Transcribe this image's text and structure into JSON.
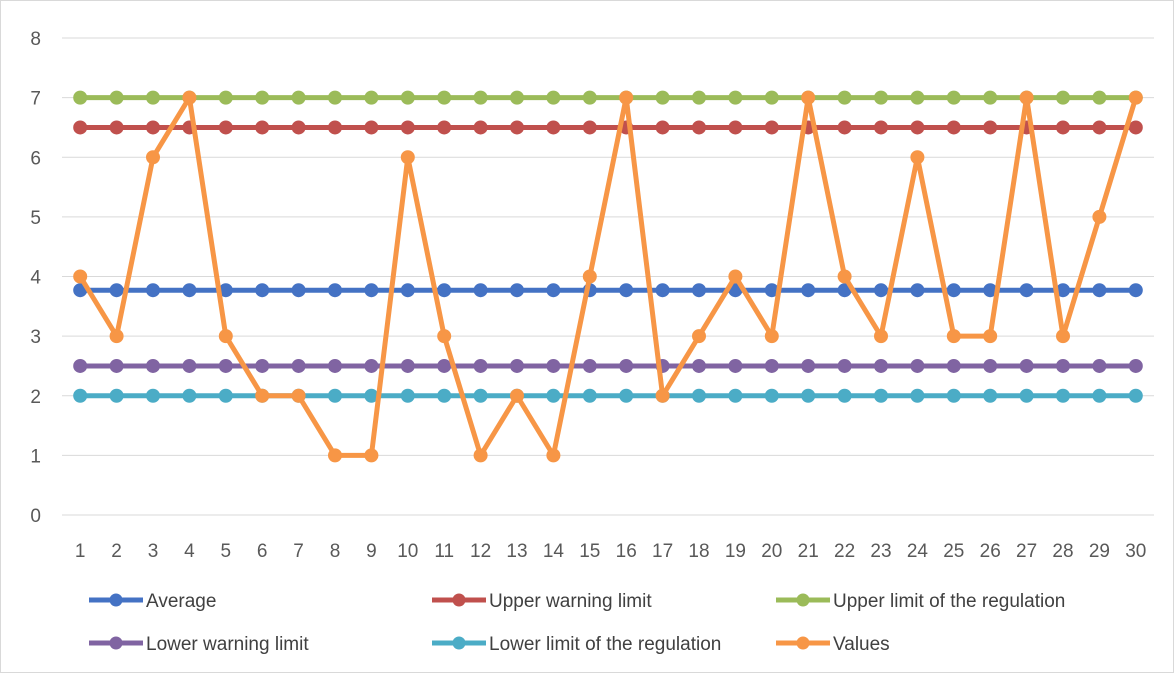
{
  "chart_data": {
    "type": "line",
    "title": "",
    "xlabel": "",
    "ylabel": "",
    "ylim": [
      0,
      8
    ],
    "yticks": [
      0,
      1,
      2,
      3,
      4,
      5,
      6,
      7,
      8
    ],
    "grid": "horizontal",
    "legend_position": "bottom",
    "categories": [
      1,
      2,
      3,
      4,
      5,
      6,
      7,
      8,
      9,
      10,
      11,
      12,
      13,
      14,
      15,
      16,
      17,
      18,
      19,
      20,
      21,
      22,
      23,
      24,
      25,
      26,
      27,
      28,
      29,
      30
    ],
    "series": [
      {
        "name": "Average",
        "color": "#4472C4",
        "values": [
          3.77,
          3.77,
          3.77,
          3.77,
          3.77,
          3.77,
          3.77,
          3.77,
          3.77,
          3.77,
          3.77,
          3.77,
          3.77,
          3.77,
          3.77,
          3.77,
          3.77,
          3.77,
          3.77,
          3.77,
          3.77,
          3.77,
          3.77,
          3.77,
          3.77,
          3.77,
          3.77,
          3.77,
          3.77,
          3.77
        ]
      },
      {
        "name": "Upper warning limit",
        "color": "#C0504D",
        "values": [
          6.5,
          6.5,
          6.5,
          6.5,
          6.5,
          6.5,
          6.5,
          6.5,
          6.5,
          6.5,
          6.5,
          6.5,
          6.5,
          6.5,
          6.5,
          6.5,
          6.5,
          6.5,
          6.5,
          6.5,
          6.5,
          6.5,
          6.5,
          6.5,
          6.5,
          6.5,
          6.5,
          6.5,
          6.5,
          6.5
        ]
      },
      {
        "name": "Upper limit of the regulation",
        "color": "#9BBB59",
        "values": [
          7,
          7,
          7,
          7,
          7,
          7,
          7,
          7,
          7,
          7,
          7,
          7,
          7,
          7,
          7,
          7,
          7,
          7,
          7,
          7,
          7,
          7,
          7,
          7,
          7,
          7,
          7,
          7,
          7,
          7
        ]
      },
      {
        "name": "Lower warning limit",
        "color": "#8064A2",
        "values": [
          2.5,
          2.5,
          2.5,
          2.5,
          2.5,
          2.5,
          2.5,
          2.5,
          2.5,
          2.5,
          2.5,
          2.5,
          2.5,
          2.5,
          2.5,
          2.5,
          2.5,
          2.5,
          2.5,
          2.5,
          2.5,
          2.5,
          2.5,
          2.5,
          2.5,
          2.5,
          2.5,
          2.5,
          2.5,
          2.5
        ]
      },
      {
        "name": "Lower limit of the regulation",
        "color": "#4BACC6",
        "values": [
          2,
          2,
          2,
          2,
          2,
          2,
          2,
          2,
          2,
          2,
          2,
          2,
          2,
          2,
          2,
          2,
          2,
          2,
          2,
          2,
          2,
          2,
          2,
          2,
          2,
          2,
          2,
          2,
          2,
          2
        ]
      },
      {
        "name": "Values",
        "color": "#F79646",
        "values": [
          4,
          3,
          6,
          7,
          3,
          2,
          2,
          1,
          1,
          6,
          3,
          1,
          2,
          1,
          4,
          7,
          2,
          3,
          4,
          3,
          7,
          4,
          3,
          6,
          3,
          3,
          7,
          3,
          5,
          7
        ]
      }
    ]
  }
}
